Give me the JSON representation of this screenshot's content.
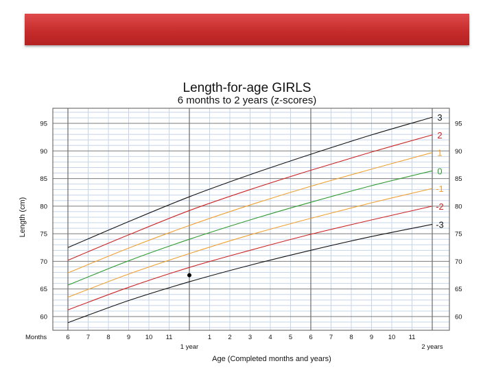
{
  "banner": {
    "color": "#cc3333"
  },
  "chart_data": {
    "type": "line",
    "title": "Length-for-age  GIRLS",
    "subtitle": "6 months to 2 years (z-scores)",
    "xlabel": "Age (Completed months and years)",
    "ylabel": "Length (cm)",
    "x_axis_prefix": "Months",
    "xlim": [
      6,
      24
    ],
    "ylim": [
      57.5,
      97.5
    ],
    "grid": true,
    "x_ticks": [
      {
        "x": 6,
        "label": "6"
      },
      {
        "x": 7,
        "label": "7"
      },
      {
        "x": 8,
        "label": "8"
      },
      {
        "x": 9,
        "label": "9"
      },
      {
        "x": 10,
        "label": "10"
      },
      {
        "x": 11,
        "label": "11"
      },
      {
        "x": 12,
        "label": "1 year"
      },
      {
        "x": 13,
        "label": "1"
      },
      {
        "x": 14,
        "label": "2"
      },
      {
        "x": 15,
        "label": "3"
      },
      {
        "x": 16,
        "label": "4"
      },
      {
        "x": 17,
        "label": "5"
      },
      {
        "x": 18,
        "label": "6"
      },
      {
        "x": 19,
        "label": "7"
      },
      {
        "x": 20,
        "label": "8"
      },
      {
        "x": 21,
        "label": "9"
      },
      {
        "x": 22,
        "label": "10"
      },
      {
        "x": 23,
        "label": "11"
      },
      {
        "x": 24,
        "label": "2 years"
      }
    ],
    "y_ticks": [
      60,
      65,
      70,
      75,
      80,
      85,
      90,
      95
    ],
    "x": [
      6,
      9,
      12,
      15,
      18,
      21,
      24
    ],
    "series": [
      {
        "name": "3",
        "color": "#111111",
        "values": [
          72.5,
          77.2,
          81.7,
          85.7,
          89.4,
          92.9,
          96.1
        ]
      },
      {
        "name": "2",
        "color": "#cc2222",
        "values": [
          70.2,
          74.8,
          79.2,
          83.0,
          86.5,
          89.8,
          92.9
        ]
      },
      {
        "name": "1",
        "color": "#f0a030",
        "values": [
          67.9,
          72.4,
          76.5,
          80.2,
          83.6,
          86.7,
          89.7
        ]
      },
      {
        "name": "0",
        "color": "#2e9a2e",
        "values": [
          65.7,
          70.1,
          74.0,
          77.5,
          80.7,
          83.7,
          86.4
        ]
      },
      {
        "name": "-1",
        "color": "#f0a030",
        "values": [
          63.5,
          67.7,
          71.4,
          74.8,
          77.8,
          80.6,
          83.2
        ]
      },
      {
        "name": "-2",
        "color": "#cc2222",
        "values": [
          61.2,
          65.3,
          68.9,
          72.0,
          74.9,
          77.5,
          80.0
        ]
      },
      {
        "name": "-3",
        "color": "#111111",
        "values": [
          58.9,
          62.9,
          66.3,
          69.3,
          72.0,
          74.5,
          76.7
        ]
      }
    ],
    "points": [
      {
        "x": 12,
        "y": 67.5,
        "color": "#000000"
      }
    ]
  }
}
